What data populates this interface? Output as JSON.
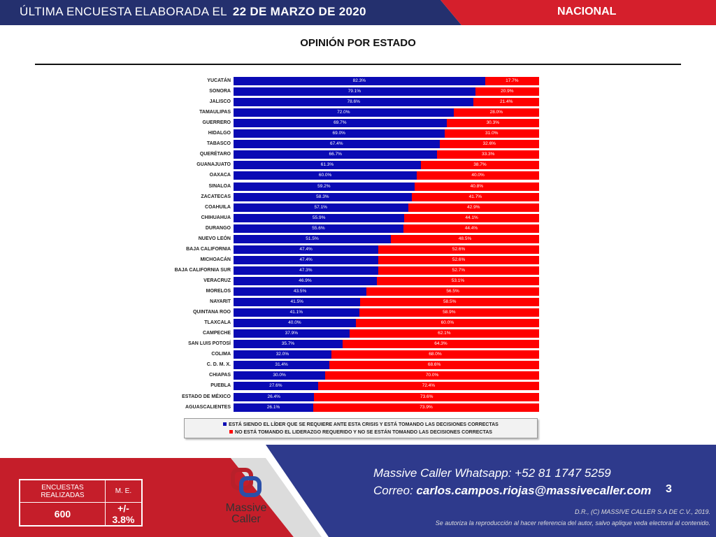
{
  "header": {
    "prefix": "ÚLTIMA ENCUESTA ELABORADA EL",
    "date": "22 DE MARZO DE 2020",
    "region": "NACIONAL"
  },
  "colors": {
    "header_blue": "#24306e",
    "accent_red": "#d51f2c",
    "bar_blue": "#0a0ab4",
    "bar_red": "#ff0000"
  },
  "chart_data": {
    "type": "bar",
    "orientation": "horizontal",
    "stacked": true,
    "normalized": true,
    "title": "OPINIÓN POR ESTADO",
    "xlim": [
      0,
      100
    ],
    "legend_position": "bottom",
    "categories": [
      "YUCATÁN",
      "SONORA",
      "JALISCO",
      "TAMAULIPAS",
      "GUERRERO",
      "HIDALGO",
      "TABASCO",
      "QUERÉTARO",
      "GUANAJUATO",
      "OAXACA",
      "SINALOA",
      "ZACATECAS",
      "COAHUILA",
      "CHIHUAHUA",
      "DURANGO",
      "NUEVO LEÓN",
      "BAJA CALIFORNIA",
      "MICHOACÁN",
      "BAJA CALIFORNIA SUR",
      "VERACRUZ",
      "MORELOS",
      "NAYARIT",
      "QUINTANA ROO",
      "TLAXCALA",
      "CAMPECHE",
      "SAN LUIS POTOSÍ",
      "COLIMA",
      "C. D. M. X.",
      "CHIAPAS",
      "PUEBLA",
      "ESTADO DE MÉXICO",
      "AGUASCALIENTES"
    ],
    "series": [
      {
        "name": "ESTÁ SIENDO EL LÍDER QUE SE REQUIERE ANTE ESTA CRISIS Y ESTÁ TOMANDO LAS DECISIONES CORRECTAS",
        "color": "#0a0ab4",
        "values": [
          82.3,
          79.1,
          78.6,
          72.0,
          69.7,
          69.0,
          67.4,
          66.7,
          61.3,
          60.0,
          59.2,
          58.3,
          57.1,
          55.9,
          55.6,
          51.5,
          47.4,
          47.4,
          47.3,
          46.9,
          43.5,
          41.5,
          41.1,
          40.0,
          37.9,
          35.7,
          32.0,
          31.4,
          30.0,
          27.6,
          26.4,
          26.1
        ]
      },
      {
        "name": "NO ESTÁ TOMANDO EL LIDERAZGO REQUERIDO Y NO SE ESTÁN TOMANDO LAS DECISIONES CORRECTAS",
        "color": "#ff0000",
        "values": [
          17.7,
          20.9,
          21.4,
          28.0,
          30.3,
          31.0,
          32.6,
          33.3,
          38.7,
          40.0,
          40.8,
          41.7,
          42.9,
          44.1,
          44.4,
          48.5,
          52.6,
          52.6,
          52.7,
          53.1,
          56.5,
          58.5,
          58.9,
          60.0,
          62.1,
          64.3,
          68.0,
          68.6,
          70.0,
          72.4,
          73.6,
          73.9
        ]
      }
    ]
  },
  "footer": {
    "stats_label1": "ENCUESTAS REALIZADAS",
    "stats_label2": "M. E.",
    "stats_value1": "600",
    "stats_value2": "+/- 3.8%",
    "logo": "Massive Caller",
    "whatsapp": "Massive Caller Whatsapp:  +52 81 1747 5259",
    "email_label": "Correo: ",
    "email": "carlos.campos.riojas@massivecaller.com",
    "page": "3",
    "copyright": "D.R., (C) MASSIVE CALLER S.A DE C.V., 2019.",
    "notice": "Se autoriza la reproducción al hacer referencia del autor, salvo aplique veda electoral al contenido."
  }
}
